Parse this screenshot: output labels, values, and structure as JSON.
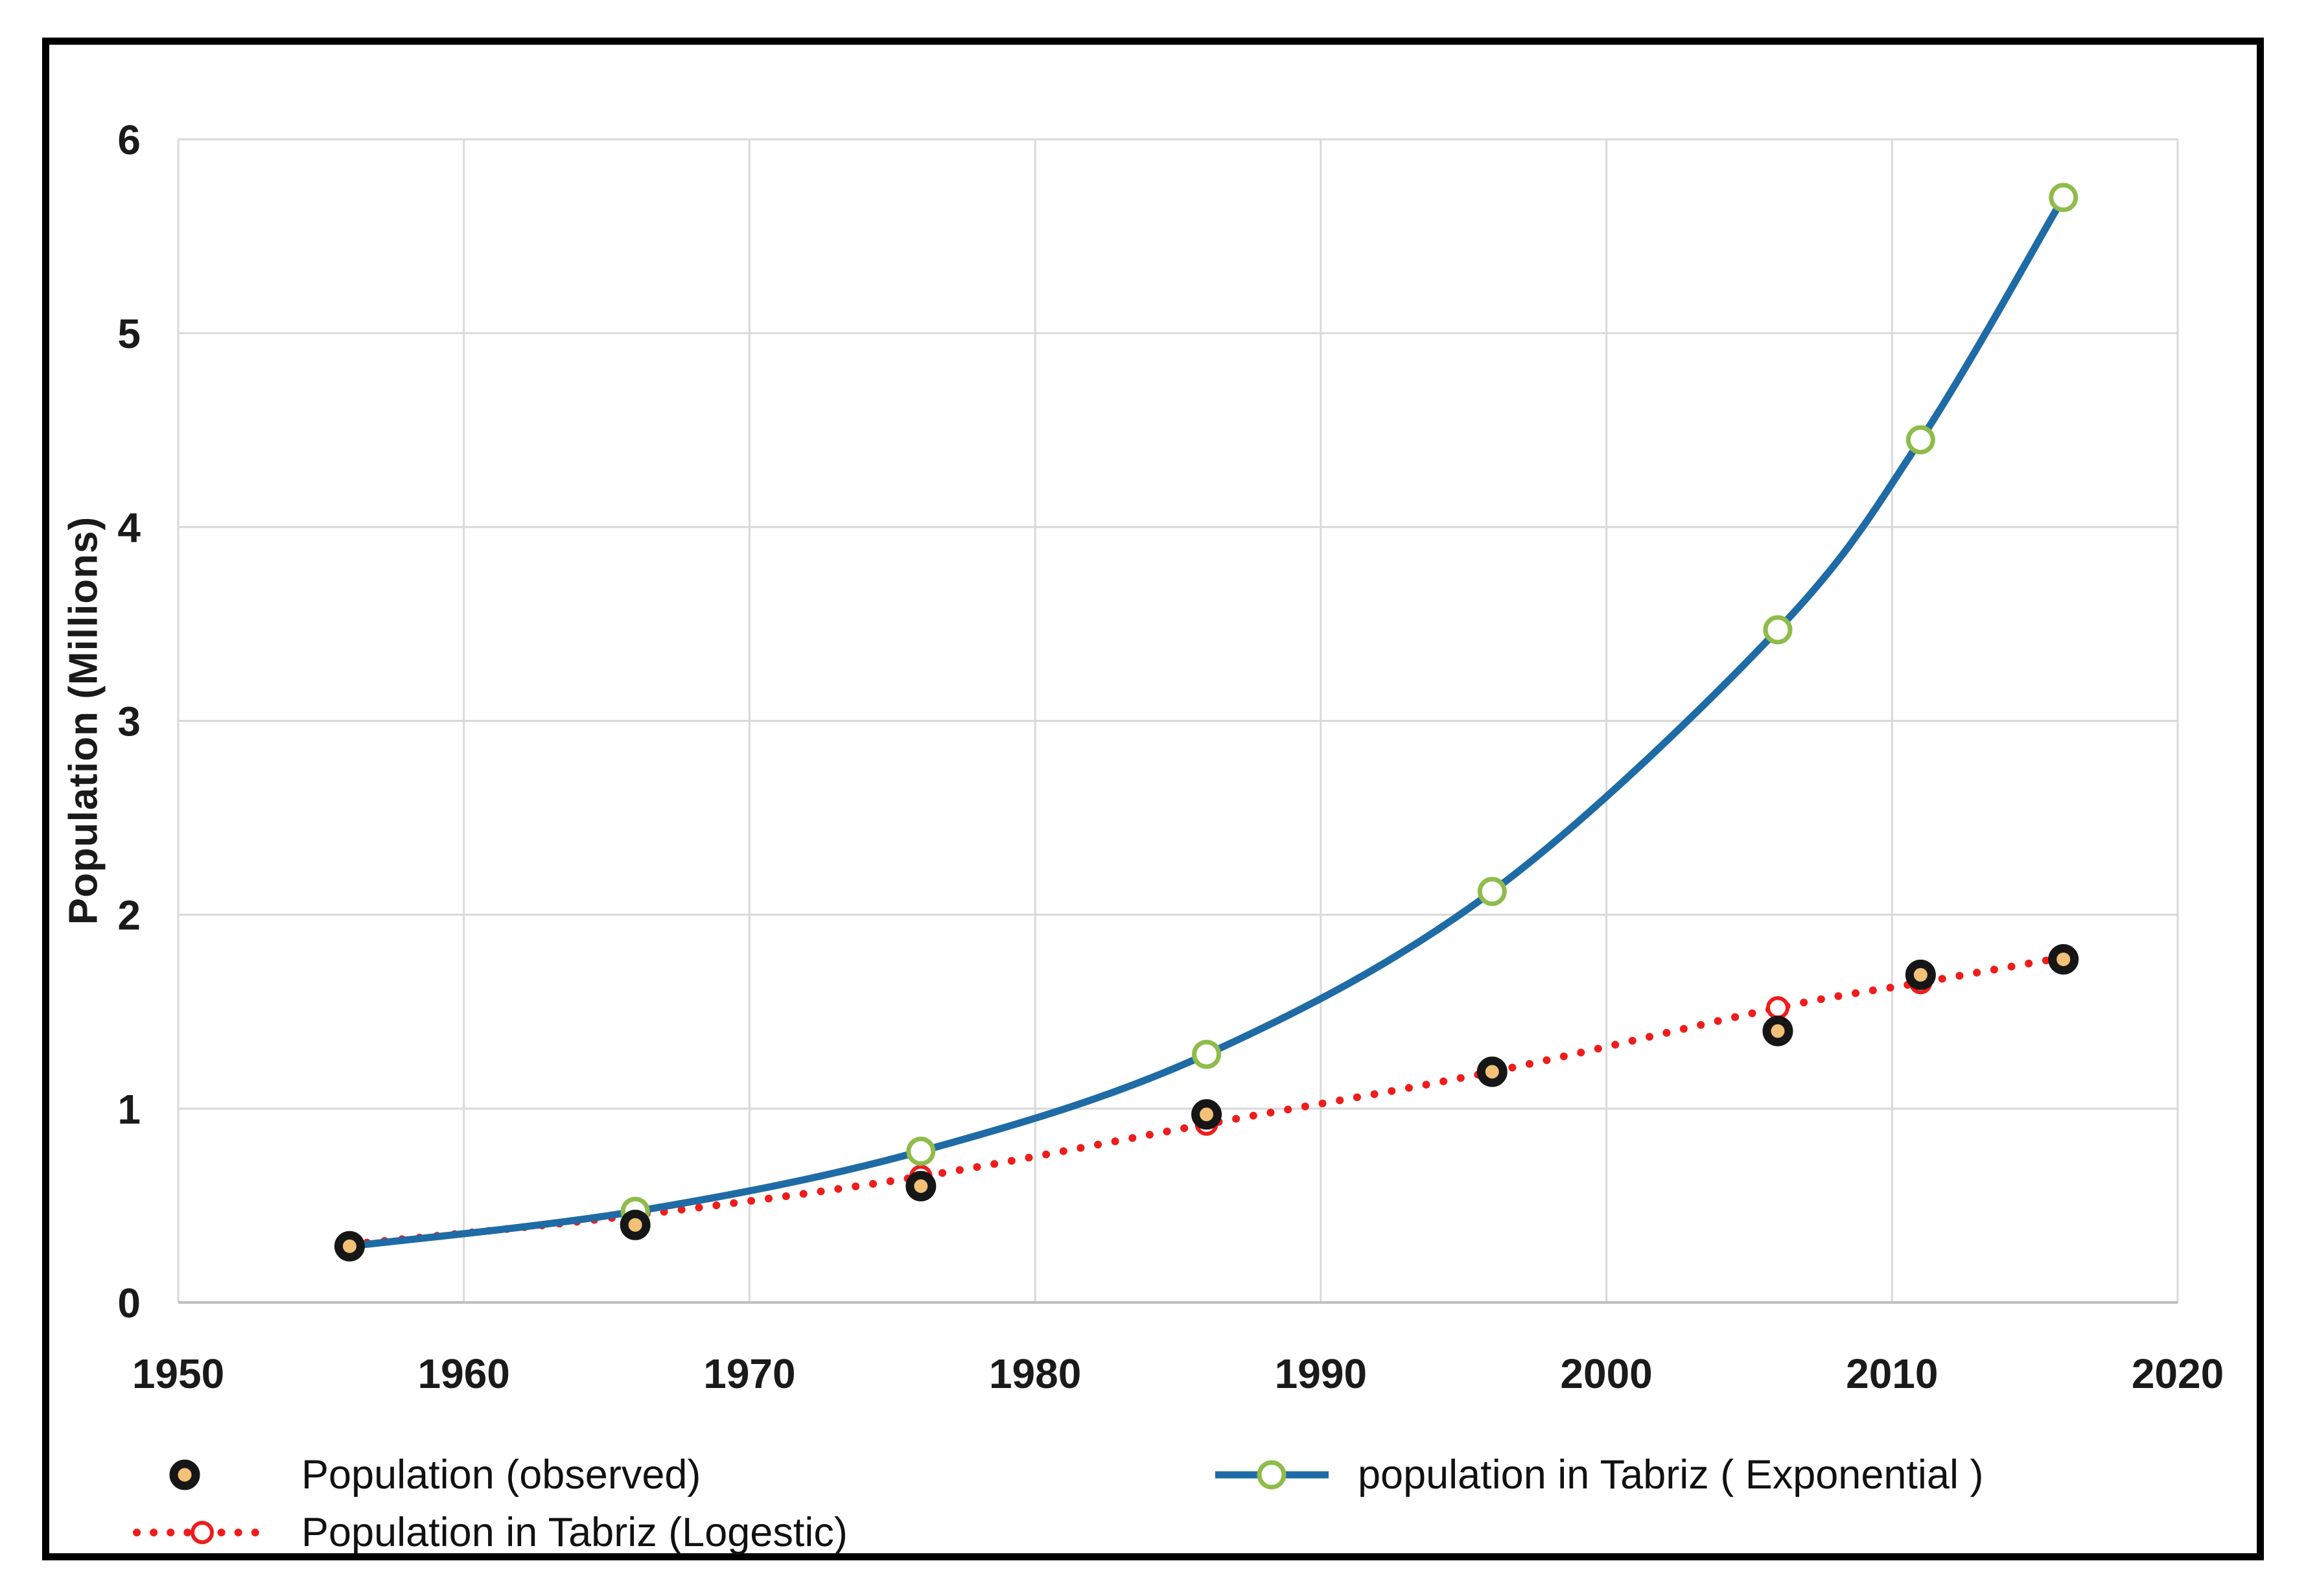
{
  "chart_data": {
    "type": "line",
    "title": "",
    "xlabel": "",
    "ylabel": "Population (Millions)",
    "xlim": [
      1950,
      2020
    ],
    "ylim": [
      0,
      6
    ],
    "x_ticks": [
      1950,
      1960,
      1970,
      1980,
      1990,
      2000,
      2010,
      2020
    ],
    "y_ticks": [
      0,
      1,
      2,
      3,
      4,
      5,
      6
    ],
    "grid": true,
    "legend_position": "bottom",
    "x": [
      1956,
      1966,
      1976,
      1986,
      1996,
      2006,
      2011,
      2016
    ],
    "series": [
      {
        "id": "observed",
        "name": "Population (observed)",
        "type": "scatter",
        "values": [
          0.29,
          0.4,
          0.6,
          0.97,
          1.19,
          1.4,
          1.69,
          1.77
        ],
        "marker": "filled-ring",
        "marker_fill": "#f2c077",
        "marker_stroke": "#161616"
      },
      {
        "id": "exponential",
        "name": "population in Tabriz ( Exponential )",
        "type": "line",
        "line_style": "solid",
        "values": [
          0.29,
          0.47,
          0.78,
          1.28,
          2.12,
          3.47,
          4.45,
          5.7
        ],
        "line_color": "#1f6ba5",
        "marker": "open-circle",
        "marker_stroke": "#8fbc4a"
      },
      {
        "id": "logistic",
        "name": "Population in Tabriz (Logestic)",
        "type": "line",
        "line_style": "dotted",
        "values": [
          0.3,
          0.45,
          0.65,
          0.92,
          1.19,
          1.52,
          1.65,
          1.78
        ],
        "line_color": "#ef1c1c",
        "marker": "open-circle",
        "marker_stroke": "#ef1c1c"
      }
    ]
  },
  "colors": {
    "gridline": "#d9d9d9",
    "axis_line": "#bfbfbf",
    "text": "#1a1a1a",
    "background": "#ffffff",
    "frame_border": "#000000"
  }
}
